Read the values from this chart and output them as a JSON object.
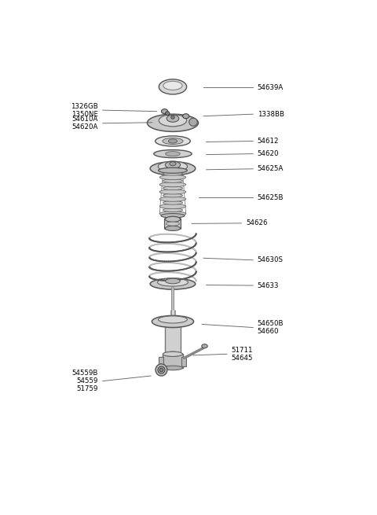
{
  "background_color": "#ffffff",
  "line_color": "#666666",
  "text_color": "#000000",
  "parts": [
    {
      "label": "54639A",
      "xl": 0.72,
      "yl": 0.935,
      "xe": 0.535,
      "ye": 0.935
    },
    {
      "label": "1326GB\n1350NE",
      "xl": 0.175,
      "yl": 0.878,
      "xe": 0.375,
      "ye": 0.875,
      "ha": "right"
    },
    {
      "label": "1338BB",
      "xl": 0.72,
      "yl": 0.868,
      "xe": 0.535,
      "ye": 0.863
    },
    {
      "label": "54610A\n54620A",
      "xl": 0.175,
      "yl": 0.845,
      "xe": 0.36,
      "ye": 0.847,
      "ha": "right"
    },
    {
      "label": "54612",
      "xl": 0.72,
      "yl": 0.8,
      "xe": 0.545,
      "ye": 0.798
    },
    {
      "label": "54620",
      "xl": 0.72,
      "yl": 0.768,
      "xe": 0.545,
      "ye": 0.766
    },
    {
      "label": "54625A",
      "xl": 0.72,
      "yl": 0.73,
      "xe": 0.545,
      "ye": 0.728
    },
    {
      "label": "54625B",
      "xl": 0.72,
      "yl": 0.658,
      "xe": 0.52,
      "ye": 0.658
    },
    {
      "label": "54626",
      "xl": 0.68,
      "yl": 0.593,
      "xe": 0.495,
      "ye": 0.592
    },
    {
      "label": "54630S",
      "xl": 0.72,
      "yl": 0.5,
      "xe": 0.535,
      "ye": 0.505
    },
    {
      "label": "54633",
      "xl": 0.72,
      "yl": 0.436,
      "xe": 0.545,
      "ye": 0.437
    },
    {
      "label": "54650B\n54660",
      "xl": 0.72,
      "yl": 0.33,
      "xe": 0.53,
      "ye": 0.338
    },
    {
      "label": "51711\n54645",
      "xl": 0.63,
      "yl": 0.263,
      "xe": 0.5,
      "ye": 0.26
    },
    {
      "label": "54559B\n54559\n51759",
      "xl": 0.175,
      "yl": 0.195,
      "xe": 0.355,
      "ye": 0.208,
      "ha": "right"
    }
  ]
}
